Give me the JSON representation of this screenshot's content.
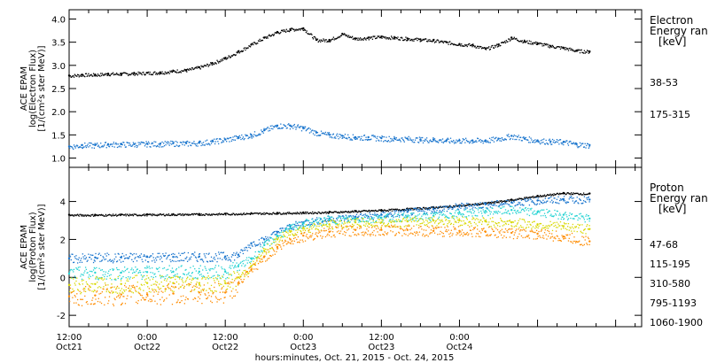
{
  "chart_data": [
    {
      "type": "scatter",
      "panel": "electron",
      "ylabel_lines": [
        "ACE EPAM",
        "log(Electron Flux)",
        "[1/(cm²s ster MeV)]"
      ],
      "ylim": [
        0.8,
        4.2
      ],
      "yticks": [
        1.0,
        1.5,
        2.0,
        2.5,
        3.0,
        3.5,
        4.0
      ],
      "ytick_labels": [
        "1.0",
        "1.5",
        "2.0",
        "2.5",
        "3.0",
        "3.5",
        "4.0"
      ],
      "legend_title_lines": [
        "Electron",
        "Energy ran",
        "[keV]"
      ],
      "series": [
        {
          "name": "38-53",
          "color": "#000000",
          "x": [
            0,
            2,
            4,
            6,
            8,
            10,
            12,
            14,
            16,
            18,
            20,
            22,
            24,
            26,
            28,
            30,
            32,
            34,
            36,
            38,
            40,
            42,
            44,
            46,
            48,
            50,
            52,
            54,
            56,
            58,
            60,
            62,
            64,
            66,
            68,
            70,
            72,
            74,
            76,
            78,
            80
          ],
          "y": [
            2.78,
            2.8,
            2.8,
            2.82,
            2.82,
            2.83,
            2.84,
            2.85,
            2.88,
            2.9,
            2.96,
            3.05,
            3.16,
            3.3,
            3.45,
            3.6,
            3.72,
            3.78,
            3.8,
            3.55,
            3.55,
            3.68,
            3.58,
            3.6,
            3.62,
            3.6,
            3.58,
            3.56,
            3.54,
            3.5,
            3.46,
            3.44,
            3.36,
            3.45,
            3.6,
            3.52,
            3.48,
            3.42,
            3.38,
            3.32,
            3.3
          ]
        },
        {
          "name": "175-315",
          "color": "#1874cd",
          "x": [
            0,
            2,
            4,
            6,
            8,
            10,
            12,
            14,
            16,
            18,
            20,
            22,
            24,
            26,
            28,
            30,
            32,
            34,
            36,
            38,
            40,
            42,
            44,
            46,
            48,
            50,
            52,
            54,
            56,
            58,
            60,
            62,
            64,
            66,
            68,
            70,
            72,
            74,
            76,
            78,
            80
          ],
          "y": [
            1.25,
            1.28,
            1.28,
            1.3,
            1.3,
            1.3,
            1.31,
            1.31,
            1.32,
            1.32,
            1.33,
            1.36,
            1.4,
            1.45,
            1.5,
            1.6,
            1.7,
            1.7,
            1.65,
            1.55,
            1.5,
            1.48,
            1.45,
            1.45,
            1.43,
            1.42,
            1.42,
            1.4,
            1.4,
            1.38,
            1.38,
            1.38,
            1.38,
            1.42,
            1.48,
            1.42,
            1.38,
            1.36,
            1.35,
            1.3,
            1.28
          ]
        }
      ]
    },
    {
      "type": "scatter",
      "panel": "proton",
      "ylabel_lines": [
        "ACE EPAM",
        "log(Proton Flux)",
        "[1/(cm²s ster MeV)]"
      ],
      "ylim": [
        -2.6,
        5.8
      ],
      "yticks": [
        -2,
        0,
        2,
        4
      ],
      "ytick_labels": [
        "-2",
        "0",
        "2",
        "4"
      ],
      "legend_title_lines": [
        "Proton",
        "Energy ran",
        "[keV]"
      ],
      "series": [
        {
          "name": "47-68",
          "color": "#000000",
          "x": [
            0,
            4,
            8,
            12,
            16,
            20,
            24,
            28,
            32,
            36,
            40,
            44,
            48,
            52,
            56,
            60,
            64,
            68,
            72,
            76,
            80
          ],
          "y": [
            3.3,
            3.3,
            3.31,
            3.32,
            3.33,
            3.34,
            3.36,
            3.38,
            3.4,
            3.42,
            3.45,
            3.5,
            3.55,
            3.62,
            3.7,
            3.8,
            3.92,
            4.1,
            4.3,
            4.45,
            4.42
          ]
        },
        {
          "name": "115-195",
          "color": "#1874cd",
          "x": [
            0,
            4,
            8,
            12,
            16,
            20,
            24,
            26,
            28,
            30,
            32,
            34,
            36,
            40,
            44,
            48,
            52,
            56,
            60,
            64,
            68,
            72,
            76,
            80
          ],
          "y": [
            1.0,
            1.05,
            1.05,
            1.08,
            1.08,
            1.1,
            1.1,
            1.2,
            1.8,
            2.0,
            2.4,
            2.7,
            2.9,
            3.1,
            3.2,
            3.3,
            3.45,
            3.6,
            3.75,
            3.85,
            3.95,
            4.05,
            4.12,
            4.1
          ]
        },
        {
          "name": "310-580",
          "color": "#22d2d2",
          "x": [
            0,
            4,
            8,
            12,
            16,
            20,
            24,
            26,
            28,
            30,
            32,
            34,
            36,
            40,
            44,
            48,
            52,
            56,
            60,
            64,
            68,
            72,
            76,
            80
          ],
          "y": [
            0.2,
            0.25,
            0.25,
            0.28,
            0.3,
            0.3,
            0.3,
            0.6,
            1.0,
            1.7,
            2.2,
            2.6,
            2.85,
            3.05,
            3.1,
            3.15,
            3.2,
            3.25,
            3.4,
            3.5,
            3.55,
            3.45,
            3.3,
            3.1
          ]
        },
        {
          "name": "795-1193",
          "color": "#d8d800",
          "x": [
            0,
            4,
            8,
            12,
            16,
            20,
            24,
            26,
            28,
            30,
            32,
            34,
            36,
            40,
            44,
            48,
            52,
            56,
            60,
            64,
            68,
            72,
            76,
            80
          ],
          "y": [
            -0.4,
            -0.35,
            -0.35,
            -0.3,
            -0.3,
            -0.3,
            -0.3,
            0.0,
            0.6,
            1.4,
            2.0,
            2.4,
            2.6,
            2.8,
            2.9,
            2.9,
            2.95,
            3.0,
            3.0,
            2.95,
            2.9,
            2.8,
            2.7,
            2.55
          ]
        },
        {
          "name": "1060-1900",
          "color": "#ff8c00",
          "x": [
            0,
            4,
            8,
            12,
            16,
            20,
            24,
            26,
            28,
            30,
            32,
            34,
            36,
            40,
            44,
            48,
            52,
            56,
            60,
            64,
            68,
            72,
            76,
            80
          ],
          "y": [
            -1.0,
            -0.95,
            -0.9,
            -0.9,
            -0.85,
            -0.8,
            -0.8,
            -0.3,
            0.4,
            1.1,
            1.6,
            2.0,
            2.2,
            2.4,
            2.5,
            2.5,
            2.5,
            2.45,
            2.45,
            2.4,
            2.35,
            2.3,
            2.15,
            1.9
          ]
        }
      ]
    }
  ],
  "x_axis": {
    "xlim": [
      0,
      88
    ],
    "major_ticks": [
      0,
      12,
      24,
      36,
      48,
      60,
      72,
      84
    ],
    "labels": [
      {
        "at": 0,
        "time": "12:00",
        "date": "Oct21"
      },
      {
        "at": 12,
        "time": "0:00",
        "date": "Oct22"
      },
      {
        "at": 24,
        "time": "12:00",
        "date": "Oct22"
      },
      {
        "at": 36,
        "time": "0:00",
        "date": "Oct23"
      },
      {
        "at": 48,
        "time": "12:00",
        "date": "Oct23"
      },
      {
        "at": 60,
        "time": "0:00",
        "date": "Oct24"
      }
    ],
    "xlabel": "hours:minutes, Oct. 21, 2015 - Oct. 24, 2015"
  }
}
